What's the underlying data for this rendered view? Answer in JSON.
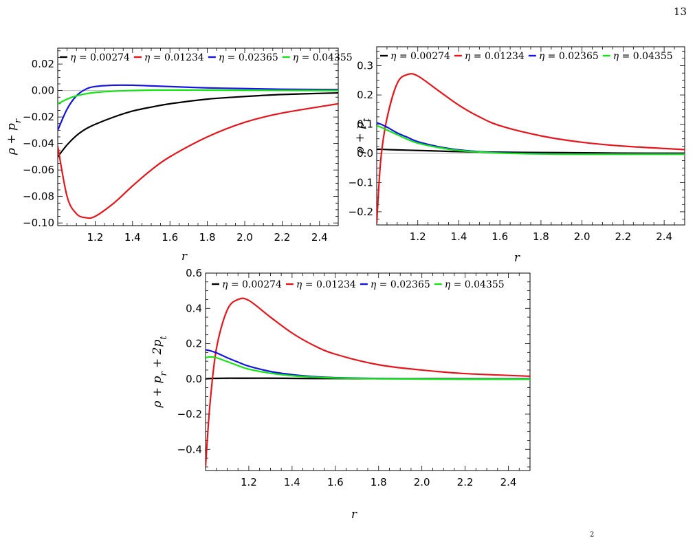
{
  "page": {
    "number": "13",
    "bottom_fragment": "2"
  },
  "colors": {
    "eta_00274": "#000000",
    "eta_01234": "#e8141a",
    "eta_02365": "#1414e6",
    "eta_04355": "#12e612"
  },
  "chart_data": [
    {
      "type": "line",
      "xlabel": "r",
      "ylabel": "ρ + p_r",
      "xlim": [
        1.0,
        2.5
      ],
      "ylim": [
        -0.102,
        0.032
      ],
      "xticks": [
        "1.2",
        "1.4",
        "1.6",
        "1.8",
        "2.0",
        "2.2",
        "2.4"
      ],
      "yticks": [
        "0.02",
        "0.00",
        "−0.02",
        "−0.04",
        "−0.06",
        "−0.08",
        "−0.10"
      ],
      "zero_line": true,
      "grid": false,
      "legend_position": "top",
      "x": [
        1.0,
        1.05,
        1.1,
        1.15,
        1.2,
        1.3,
        1.4,
        1.5,
        1.6,
        1.8,
        2.0,
        2.2,
        2.5
      ],
      "series": [
        {
          "name": "η = 0.00274",
          "values": [
            -0.05,
            -0.041,
            -0.034,
            -0.029,
            -0.0255,
            -0.02,
            -0.0155,
            -0.0125,
            -0.01,
            -0.0065,
            -0.0045,
            -0.003,
            -0.0018
          ]
        },
        {
          "name": "η = 0.01234",
          "values": [
            -0.042,
            -0.08,
            -0.093,
            -0.096,
            -0.095,
            -0.085,
            -0.072,
            -0.06,
            -0.05,
            -0.035,
            -0.024,
            -0.017,
            -0.01
          ]
        },
        {
          "name": "η = 0.02365",
          "values": [
            -0.03,
            -0.014,
            -0.004,
            0.001,
            0.003,
            0.004,
            0.004,
            0.0035,
            0.003,
            0.002,
            0.0015,
            0.001,
            0.0007
          ]
        },
        {
          "name": "η = 0.04355",
          "values": [
            -0.01,
            -0.0065,
            -0.004,
            -0.0025,
            -0.0015,
            -0.0005,
            0.0,
            0.0003,
            0.0004,
            0.0003,
            0.0002,
            0.0001,
            0.0
          ]
        }
      ]
    },
    {
      "type": "line",
      "xlabel": "r",
      "ylabel": "ρ + p_t",
      "xlim": [
        1.0,
        2.5
      ],
      "ylim": [
        -0.245,
        0.365
      ],
      "xticks": [
        "1.2",
        "1.4",
        "1.6",
        "1.8",
        "2.0",
        "2.2",
        "2.4"
      ],
      "yticks": [
        "0.3",
        "0.2",
        "0.1",
        "0.0",
        "−0.1",
        "−0.2"
      ],
      "zero_line": true,
      "grid": false,
      "legend_position": "top",
      "x": [
        1.0,
        1.02,
        1.05,
        1.1,
        1.15,
        1.2,
        1.3,
        1.4,
        1.5,
        1.6,
        1.8,
        2.0,
        2.2,
        2.5
      ],
      "series": [
        {
          "name": "η = 0.00274",
          "values": [
            0.014,
            0.014,
            0.013,
            0.012,
            0.011,
            0.01,
            0.008,
            0.006,
            0.005,
            0.004,
            0.003,
            0.002,
            0.001,
            0.0005
          ]
        },
        {
          "name": "η = 0.01234",
          "values": [
            -0.24,
            -0.02,
            0.12,
            0.24,
            0.27,
            0.265,
            0.215,
            0.165,
            0.125,
            0.095,
            0.06,
            0.038,
            0.025,
            0.013
          ]
        },
        {
          "name": "η = 0.02365",
          "values": [
            0.105,
            0.1,
            0.09,
            0.07,
            0.055,
            0.04,
            0.023,
            0.012,
            0.006,
            0.002,
            -0.001,
            -0.002,
            -0.002,
            -0.002
          ]
        },
        {
          "name": "η = 0.04355",
          "values": [
            0.094,
            0.09,
            0.08,
            0.064,
            0.048,
            0.035,
            0.02,
            0.01,
            0.005,
            0.001,
            -0.002,
            -0.003,
            -0.003,
            -0.003
          ]
        }
      ]
    },
    {
      "type": "line",
      "xlabel": "r",
      "ylabel": "ρ + p_r + 2p_t",
      "xlim": [
        1.0,
        2.5
      ],
      "ylim": [
        -0.52,
        0.6
      ],
      "xticks": [
        "1.2",
        "1.4",
        "1.6",
        "1.8",
        "2.0",
        "2.2",
        "2.4"
      ],
      "yticks": [
        "0.6",
        "0.4",
        "0.2",
        "0.0",
        "−0.2",
        "−0.4"
      ],
      "zero_line": true,
      "grid": false,
      "legend_position": "top",
      "x": [
        1.0,
        1.02,
        1.05,
        1.1,
        1.15,
        1.2,
        1.3,
        1.4,
        1.5,
        1.6,
        1.8,
        2.0,
        2.2,
        2.5
      ],
      "series": [
        {
          "name": "η = 0.00274",
          "values": [
            0.0,
            0.002,
            0.003,
            0.004,
            0.004,
            0.004,
            0.004,
            0.003,
            0.002,
            0.002,
            0.001,
            0.001,
            0.0005,
            0.0
          ]
        },
        {
          "name": "η = 0.01234",
          "values": [
            -0.5,
            -0.15,
            0.17,
            0.39,
            0.45,
            0.445,
            0.35,
            0.26,
            0.19,
            0.14,
            0.08,
            0.05,
            0.03,
            0.015
          ]
        },
        {
          "name": "η = 0.02365",
          "values": [
            0.165,
            0.16,
            0.148,
            0.12,
            0.095,
            0.072,
            0.042,
            0.024,
            0.013,
            0.007,
            0.002,
            0.0,
            -0.001,
            -0.001
          ]
        },
        {
          "name": "η = 0.04355",
          "values": [
            0.12,
            0.125,
            0.12,
            0.098,
            0.075,
            0.055,
            0.032,
            0.018,
            0.01,
            0.005,
            0.001,
            -0.001,
            -0.002,
            -0.002
          ]
        }
      ]
    }
  ]
}
